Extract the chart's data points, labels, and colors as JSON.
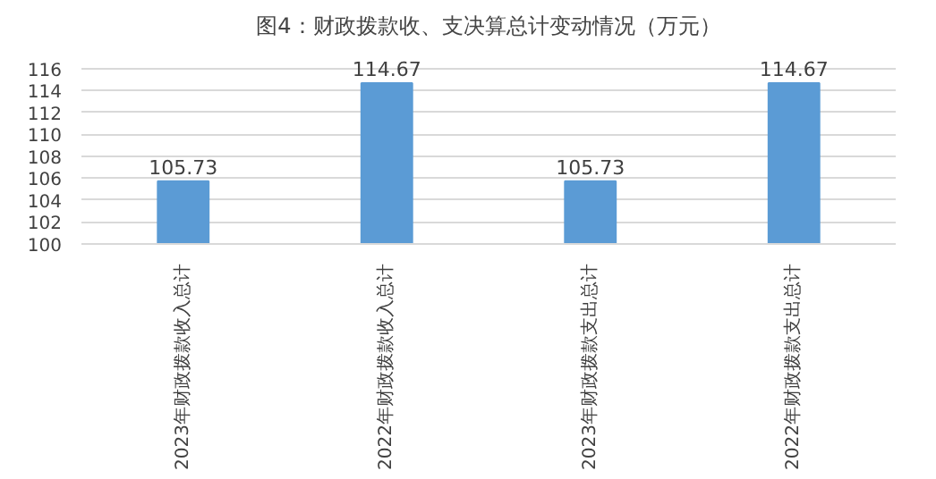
{
  "chart_data": {
    "type": "bar",
    "title": "图4：财政拨款收、支决算总计变动情况（万元）",
    "categories": [
      "2023年财政拨款收入总计",
      "2022年财政拨款收入总计",
      "2023年财政拨款支出总计",
      "2022年财政拨款支出总计"
    ],
    "values": [
      105.73,
      114.67,
      105.73,
      114.67
    ],
    "color": "#5b9bd5",
    "data_labels": true,
    "ylim": [
      100,
      116
    ],
    "yticks": [
      100,
      102,
      104,
      106,
      108,
      110,
      112,
      114,
      116
    ],
    "grid": "y"
  }
}
